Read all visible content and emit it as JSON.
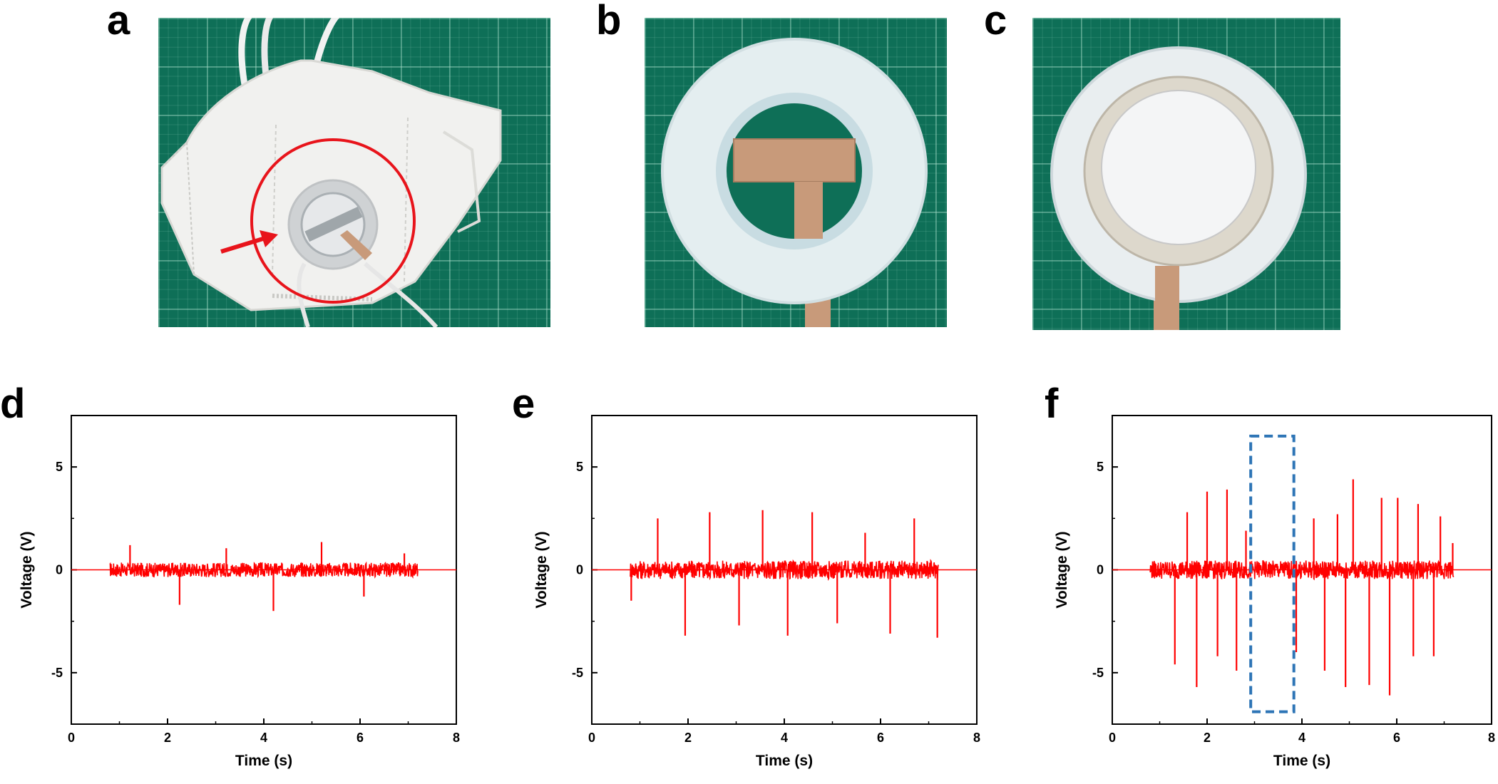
{
  "panels": {
    "a": {
      "letter": "a"
    },
    "b": {
      "letter": "b"
    },
    "c": {
      "letter": "c"
    },
    "d": {
      "letter": "d"
    },
    "e": {
      "letter": "e"
    },
    "f": {
      "letter": "f"
    }
  },
  "colors": {
    "signal": "#ff0000",
    "highlight_circle": "#e8141b",
    "dashed_box": "#2e75b6",
    "mat": "#0e6f57",
    "copper": "#c89a7a"
  },
  "chart_data": [
    {
      "panel": "d",
      "type": "line",
      "xlabel": "Time (s)",
      "ylabel": "Voltage (V)",
      "xlim": [
        0,
        8
      ],
      "ylim": [
        -7.5,
        7.5
      ],
      "xticks": [
        0,
        2,
        4,
        6,
        8
      ],
      "yticks": [
        -5,
        0,
        5
      ],
      "baseline": 0,
      "signal_range": [
        0.8,
        7.2
      ],
      "noise_band": 0.35,
      "peaks": [
        {
          "x": 1.22,
          "y": 1.2
        },
        {
          "x": 2.25,
          "y": -1.7
        },
        {
          "x": 3.22,
          "y": 1.05
        },
        {
          "x": 4.2,
          "y": -2.0
        },
        {
          "x": 5.2,
          "y": 1.35
        },
        {
          "x": 6.08,
          "y": -1.3
        },
        {
          "x": 6.92,
          "y": 0.8
        }
      ]
    },
    {
      "panel": "e",
      "type": "line",
      "xlabel": "Time (s)",
      "ylabel": "Voltage (V)",
      "xlim": [
        0,
        8
      ],
      "ylim": [
        -7.5,
        7.5
      ],
      "xticks": [
        0,
        2,
        4,
        6,
        8
      ],
      "yticks": [
        -5,
        0,
        5
      ],
      "baseline": 0,
      "signal_range": [
        0.8,
        7.2
      ],
      "noise_band": 0.45,
      "peaks": [
        {
          "x": 0.82,
          "y": -1.5
        },
        {
          "x": 1.37,
          "y": 2.5
        },
        {
          "x": 1.94,
          "y": -3.2
        },
        {
          "x": 2.45,
          "y": 2.8
        },
        {
          "x": 3.06,
          "y": -2.7
        },
        {
          "x": 3.55,
          "y": 2.9
        },
        {
          "x": 4.07,
          "y": -3.2
        },
        {
          "x": 4.58,
          "y": 2.8
        },
        {
          "x": 5.1,
          "y": -2.6
        },
        {
          "x": 5.68,
          "y": 1.8
        },
        {
          "x": 6.2,
          "y": -3.1
        },
        {
          "x": 6.7,
          "y": 2.5
        },
        {
          "x": 7.18,
          "y": -3.3
        }
      ]
    },
    {
      "panel": "f",
      "type": "line",
      "xlabel": "Time (s)",
      "ylabel": "Voltage (V)",
      "xlim": [
        0,
        8
      ],
      "ylim": [
        -7.5,
        7.5
      ],
      "xticks": [
        0,
        2,
        4,
        6,
        8
      ],
      "yticks": [
        -5,
        0,
        5
      ],
      "baseline": 0,
      "signal_range": [
        0.8,
        7.2
      ],
      "noise_band": 0.45,
      "dashed_box": {
        "x0": 2.92,
        "x1": 3.83,
        "y0": -6.9,
        "y1": 6.5
      },
      "peaks": [
        {
          "x": 1.32,
          "y": -4.6
        },
        {
          "x": 1.58,
          "y": 2.8
        },
        {
          "x": 1.78,
          "y": -5.7
        },
        {
          "x": 2.0,
          "y": 3.8
        },
        {
          "x": 2.22,
          "y": -4.2
        },
        {
          "x": 2.42,
          "y": 3.9
        },
        {
          "x": 2.62,
          "y": -4.9
        },
        {
          "x": 2.82,
          "y": 1.9
        },
        {
          "x": 3.88,
          "y": -4.0
        },
        {
          "x": 4.25,
          "y": 2.5
        },
        {
          "x": 4.48,
          "y": -4.9
        },
        {
          "x": 4.75,
          "y": 2.7
        },
        {
          "x": 4.92,
          "y": -5.7
        },
        {
          "x": 5.08,
          "y": 4.4
        },
        {
          "x": 5.42,
          "y": -5.6
        },
        {
          "x": 5.68,
          "y": 3.5
        },
        {
          "x": 5.85,
          "y": -6.1
        },
        {
          "x": 6.02,
          "y": 3.5
        },
        {
          "x": 6.35,
          "y": -4.2
        },
        {
          "x": 6.45,
          "y": 3.2
        },
        {
          "x": 6.78,
          "y": -4.2
        },
        {
          "x": 6.92,
          "y": 2.6
        },
        {
          "x": 7.18,
          "y": 1.3
        }
      ]
    }
  ]
}
